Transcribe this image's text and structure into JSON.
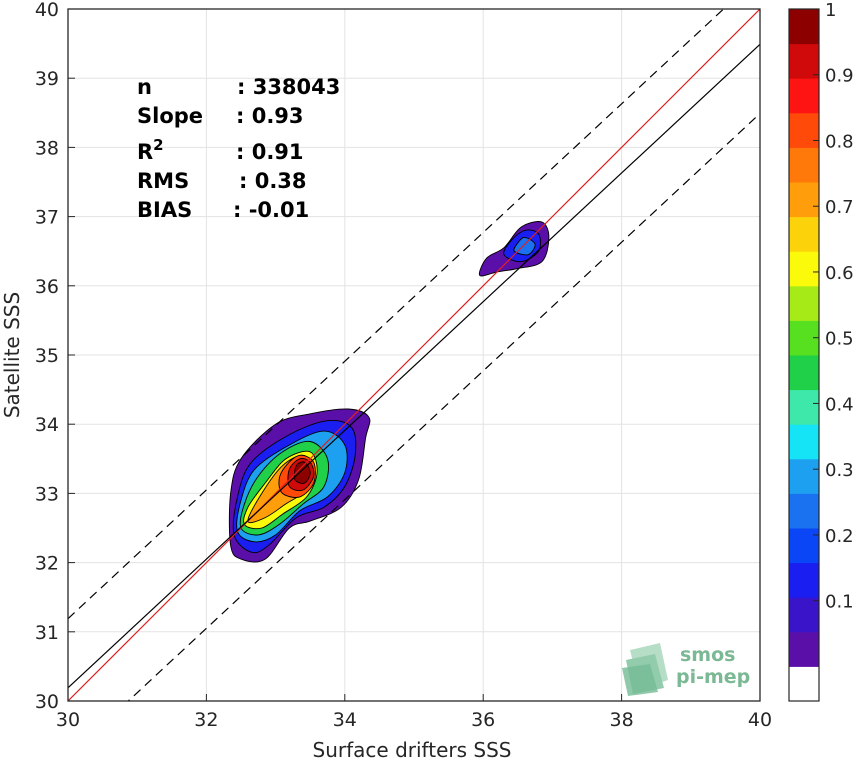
{
  "chart_data": {
    "type": "scatter-density",
    "xlabel": "Surface drifters SSS",
    "ylabel": "Satellite SSS",
    "xlim": [
      30,
      40
    ],
    "ylim": [
      30,
      40
    ],
    "xticks": [
      "30",
      "32",
      "34",
      "36",
      "38",
      "40"
    ],
    "yticks": [
      "30",
      "31",
      "32",
      "33",
      "34",
      "35",
      "36",
      "37",
      "38",
      "39",
      "40"
    ],
    "grid": true,
    "stats": [
      {
        "key": "n",
        "value": ": 338043"
      },
      {
        "key": "Slope",
        "value": ": 0.93"
      },
      {
        "key": "R",
        "sup": "2",
        "value": ": 0.91"
      },
      {
        "key": "RMS",
        "value": ": 0.38"
      },
      {
        "key": "BIAS",
        "value": ": -0.01"
      }
    ],
    "lines": [
      {
        "role": "identity",
        "color": "#e02020",
        "style": "solid",
        "slope": 1.0,
        "intercept": 0.0
      },
      {
        "role": "regression",
        "color": "#000000",
        "style": "solid",
        "slope": 0.93,
        "intercept": 2.29
      },
      {
        "role": "upper-bound",
        "color": "#000000",
        "style": "dashed",
        "slope": 0.93,
        "intercept": 3.29
      },
      {
        "role": "lower-bound",
        "color": "#000000",
        "style": "dashed",
        "slope": 0.93,
        "intercept": 1.29
      }
    ],
    "density_clusters": [
      {
        "center": [
          33.4,
          33.35
        ],
        "peak": 1.0,
        "levels": [
          {
            "level": 0.05,
            "points": [
              [
                32.35,
                32.25
              ],
              [
                32.5,
                32.05
              ],
              [
                32.85,
                32.05
              ],
              [
                33.2,
                32.5
              ],
              [
                33.5,
                32.6
              ],
              [
                33.95,
                32.8
              ],
              [
                34.2,
                33.2
              ],
              [
                34.3,
                33.8
              ],
              [
                34.35,
                34.1
              ],
              [
                34.05,
                34.22
              ],
              [
                33.5,
                34.15
              ],
              [
                33.0,
                34.0
              ],
              [
                32.5,
                33.5
              ],
              [
                32.35,
                33.0
              ]
            ]
          },
          {
            "level": 0.15,
            "points": [
              [
                32.4,
                32.4
              ],
              [
                32.65,
                32.15
              ],
              [
                32.9,
                32.25
              ],
              [
                33.3,
                32.65
              ],
              [
                33.7,
                32.8
              ],
              [
                34.0,
                33.1
              ],
              [
                34.15,
                33.55
              ],
              [
                34.1,
                33.95
              ],
              [
                33.75,
                34.05
              ],
              [
                33.2,
                33.85
              ],
              [
                32.65,
                33.45
              ],
              [
                32.45,
                32.95
              ]
            ]
          },
          {
            "level": 0.3,
            "points": [
              [
                32.45,
                32.45
              ],
              [
                32.7,
                32.3
              ],
              [
                33.0,
                32.4
              ],
              [
                33.35,
                32.75
              ],
              [
                33.75,
                32.95
              ],
              [
                34.0,
                33.3
              ],
              [
                34.0,
                33.7
              ],
              [
                33.7,
                33.9
              ],
              [
                33.2,
                33.7
              ],
              [
                32.7,
                33.35
              ],
              [
                32.5,
                32.9
              ]
            ]
          },
          {
            "level": 0.45,
            "points": [
              [
                32.5,
                32.5
              ],
              [
                32.75,
                32.4
              ],
              [
                33.05,
                32.55
              ],
              [
                33.4,
                32.85
              ],
              [
                33.7,
                33.1
              ],
              [
                33.75,
                33.5
              ],
              [
                33.5,
                33.75
              ],
              [
                33.1,
                33.6
              ],
              [
                32.75,
                33.25
              ],
              [
                32.55,
                32.85
              ]
            ]
          },
          {
            "level": 0.6,
            "points": [
              [
                32.55,
                32.55
              ],
              [
                32.8,
                32.5
              ],
              [
                33.1,
                32.7
              ],
              [
                33.45,
                32.95
              ],
              [
                33.6,
                33.3
              ],
              [
                33.5,
                33.6
              ],
              [
                33.15,
                33.5
              ],
              [
                32.85,
                33.15
              ],
              [
                32.6,
                32.8
              ]
            ]
          },
          {
            "level": 0.7,
            "points": [
              [
                32.6,
                32.6
              ],
              [
                32.85,
                32.65
              ],
              [
                33.15,
                32.85
              ],
              [
                33.45,
                33.05
              ],
              [
                33.55,
                33.35
              ],
              [
                33.4,
                33.55
              ],
              [
                33.1,
                33.4
              ],
              [
                32.8,
                33.0
              ]
            ]
          },
          {
            "level": 0.8,
            "points": [
              [
                33.1,
                33.0
              ],
              [
                33.35,
                32.95
              ],
              [
                33.55,
                33.15
              ],
              [
                33.55,
                33.45
              ],
              [
                33.35,
                33.55
              ],
              [
                33.15,
                33.4
              ],
              [
                33.05,
                33.2
              ]
            ]
          },
          {
            "level": 0.9,
            "points": [
              [
                33.2,
                33.1
              ],
              [
                33.4,
                33.05
              ],
              [
                33.55,
                33.25
              ],
              [
                33.5,
                33.45
              ],
              [
                33.35,
                33.5
              ],
              [
                33.2,
                33.35
              ]
            ]
          },
          {
            "level": 1.0,
            "points": [
              [
                33.28,
                33.2
              ],
              [
                33.42,
                33.15
              ],
              [
                33.5,
                33.3
              ],
              [
                33.42,
                33.45
              ],
              [
                33.3,
                33.4
              ]
            ]
          }
        ]
      },
      {
        "center": [
          36.6,
          36.55
        ],
        "peak": 0.32,
        "levels": [
          {
            "level": 0.05,
            "points": [
              [
                35.95,
                36.15
              ],
              [
                36.2,
                36.2
              ],
              [
                36.5,
                36.25
              ],
              [
                36.85,
                36.35
              ],
              [
                36.95,
                36.7
              ],
              [
                36.85,
                36.92
              ],
              [
                36.55,
                36.85
              ],
              [
                36.3,
                36.55
              ],
              [
                36.05,
                36.4
              ]
            ]
          },
          {
            "level": 0.15,
            "points": [
              [
                36.3,
                36.45
              ],
              [
                36.55,
                36.35
              ],
              [
                36.8,
                36.5
              ],
              [
                36.8,
                36.75
              ],
              [
                36.6,
                36.8
              ],
              [
                36.4,
                36.65
              ]
            ]
          },
          {
            "level": 0.25,
            "points": [
              [
                36.45,
                36.5
              ],
              [
                36.65,
                36.45
              ],
              [
                36.75,
                36.6
              ],
              [
                36.6,
                36.7
              ],
              [
                36.5,
                36.62
              ]
            ]
          }
        ]
      }
    ],
    "colorbar": {
      "range": [
        0,
        1
      ],
      "ticks": [
        "0.1",
        "0.2",
        "0.3",
        "0.4",
        "0.5",
        "0.6",
        "0.7",
        "0.8",
        "0.9",
        "1"
      ],
      "colors": [
        "#ffffff",
        "#5a0fa8",
        "#3a14c8",
        "#1a1ef0",
        "#0a46f6",
        "#1a72f0",
        "#1ea0f0",
        "#14e4f6",
        "#3ee8aa",
        "#20d048",
        "#56e020",
        "#a6ea18",
        "#fafa0a",
        "#fcd20a",
        "#ff9d0a",
        "#ff780a",
        "#ff4a0a",
        "#ff1414",
        "#d00a0a",
        "#8c0000"
      ]
    },
    "watermark": {
      "line1": "smos",
      "line2": "pi-mep"
    }
  }
}
